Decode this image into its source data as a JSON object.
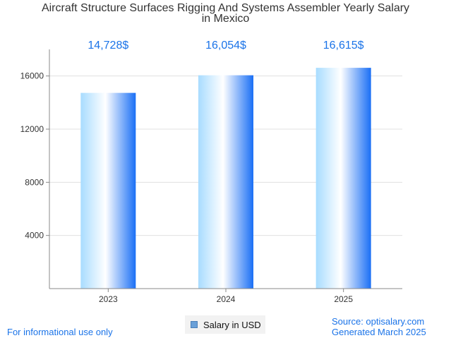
{
  "title_line1": "Aircraft Structure Surfaces Rigging And Systems Assembler Yearly Salary",
  "title_line2": "in Mexico",
  "footer": {
    "left": "For informational use only",
    "source": "Source: optisalary.com",
    "generated": "Generated March 2025"
  },
  "legend": {
    "label": "Salary in USD"
  },
  "colors": {
    "bar_left": "#a8dcff",
    "bar_mid": "#ffffff",
    "bar_right": "#1a6ff5",
    "label": "#1a73e8"
  },
  "chart_data": {
    "type": "bar",
    "categories": [
      "2023",
      "2024",
      "2025"
    ],
    "series": [
      {
        "name": "Salary in USD",
        "values": [
          14728,
          16054,
          16615
        ]
      }
    ],
    "data_labels": [
      "14,728$",
      "16,054$",
      "16,615$"
    ],
    "yticks": [
      4000,
      8000,
      12000,
      16000
    ],
    "ylim": [
      0,
      18000
    ],
    "grid": true,
    "legend_position": "bottom-center"
  }
}
